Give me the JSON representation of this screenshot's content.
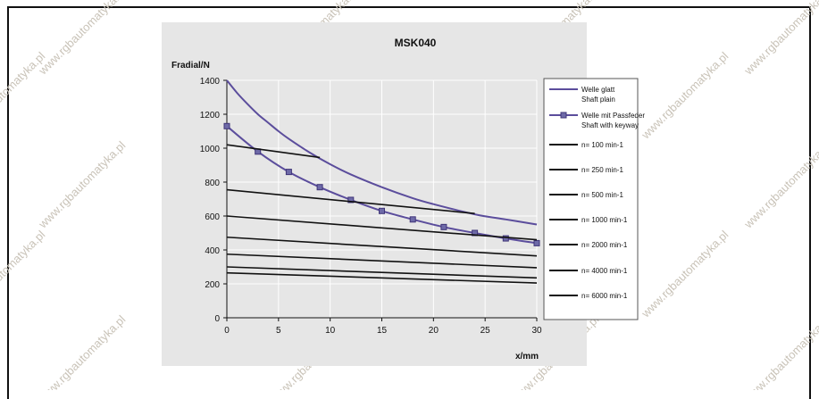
{
  "chart_data": {
    "type": "line",
    "title": "MSK040",
    "ylabel": "Fradial/N",
    "xlabel": "x/mm",
    "xlim": [
      0,
      30
    ],
    "ylim": [
      0,
      1400
    ],
    "xticks": [
      0,
      5,
      10,
      15,
      20,
      25,
      30
    ],
    "yticks": [
      0,
      200,
      400,
      600,
      800,
      1000,
      1200,
      1400
    ],
    "grid": true,
    "legend_position": "right",
    "series": [
      {
        "name": "Welle glatt\nShaft plain",
        "color": "#5b4d9c",
        "marker": "none",
        "x": [
          0,
          1,
          2,
          3,
          4,
          5,
          6,
          8,
          10,
          12,
          15,
          18,
          20,
          24,
          27,
          30
        ],
        "y": [
          1400,
          1325,
          1260,
          1200,
          1150,
          1100,
          1055,
          975,
          905,
          845,
          770,
          705,
          670,
          610,
          580,
          550
        ]
      },
      {
        "name": "Welle mit Passfeder\nShaft with keyway",
        "color": "#5b4d9c",
        "marker": "square",
        "x": [
          0,
          3,
          6,
          9,
          12,
          15,
          18,
          21,
          24,
          27,
          30
        ],
        "y": [
          1130,
          980,
          860,
          770,
          695,
          630,
          580,
          535,
          500,
          468,
          440
        ]
      },
      {
        "name": "n= 100 min-1",
        "color": "#111111",
        "marker": "none",
        "x": [
          0,
          9
        ],
        "y": [
          1020,
          945
        ]
      },
      {
        "name": "n= 250 min-1",
        "color": "#111111",
        "marker": "none",
        "x": [
          0,
          24
        ],
        "y": [
          755,
          615
        ]
      },
      {
        "name": "n= 500 min-1",
        "color": "#111111",
        "marker": "none",
        "x": [
          0,
          30
        ],
        "y": [
          600,
          460
        ]
      },
      {
        "name": "n= 1000 min-1",
        "color": "#111111",
        "marker": "none",
        "x": [
          0,
          30
        ],
        "y": [
          475,
          365
        ]
      },
      {
        "name": "n= 2000 min-1",
        "color": "#111111",
        "marker": "none",
        "x": [
          0,
          30
        ],
        "y": [
          375,
          295
        ]
      },
      {
        "name": "n= 4000 min-1",
        "color": "#111111",
        "marker": "none",
        "x": [
          0,
          30
        ],
        "y": [
          300,
          235
        ]
      },
      {
        "name": "n= 6000 min-1",
        "color": "#111111",
        "marker": "none",
        "x": [
          0,
          30
        ],
        "y": [
          265,
          205
        ]
      }
    ]
  },
  "watermark": "www.rgbautomatyka.pl",
  "colors": {
    "chart_background": "#e6e6e6",
    "plot_background": "#e6e6e6",
    "gridline": "#ffffff",
    "legend_background": "#ffffff"
  }
}
